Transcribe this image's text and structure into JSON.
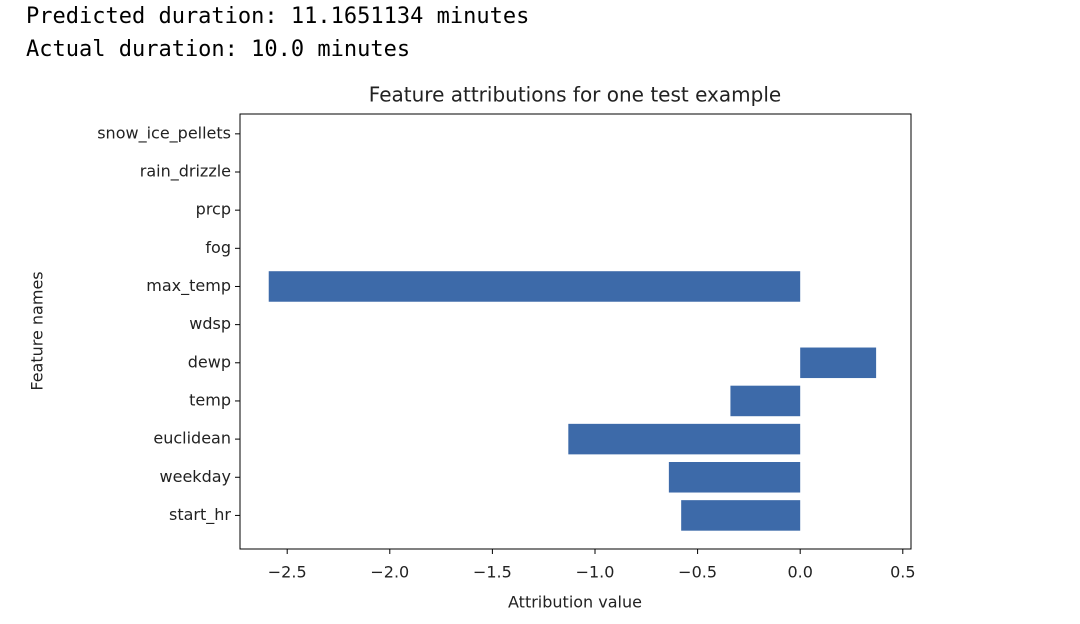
{
  "output": {
    "lines": [
      "Predicted duration: 11.1651134 minutes",
      "Actual duration: 10.0 minutes"
    ]
  },
  "chart_data": {
    "type": "barh",
    "title": "Feature attributions for one test example",
    "x_label": "Attribution value",
    "y_label": "Feature names",
    "categories": [
      "start_hr",
      "weekday",
      "euclidean",
      "temp",
      "dewp",
      "wdsp",
      "max_temp",
      "fog",
      "prcp",
      "rain_drizzle",
      "snow_ice_pellets"
    ],
    "values": [
      -0.58,
      -0.64,
      -1.13,
      -0.34,
      0.37,
      0,
      -2.59,
      0,
      0,
      0,
      0
    ],
    "color": "#3d6aa9",
    "xlim": [
      -2.73,
      0.54
    ],
    "xticks": [
      {
        "value": -2.5,
        "label": "−2.5"
      },
      {
        "value": -2.0,
        "label": "−2.0"
      },
      {
        "value": -1.5,
        "label": "−1.5"
      },
      {
        "value": -1.0,
        "label": "−1.0"
      },
      {
        "value": -0.5,
        "label": "−0.5"
      },
      {
        "value": 0,
        "label": "0.0"
      },
      0.5
    ],
    "grid": false
  }
}
